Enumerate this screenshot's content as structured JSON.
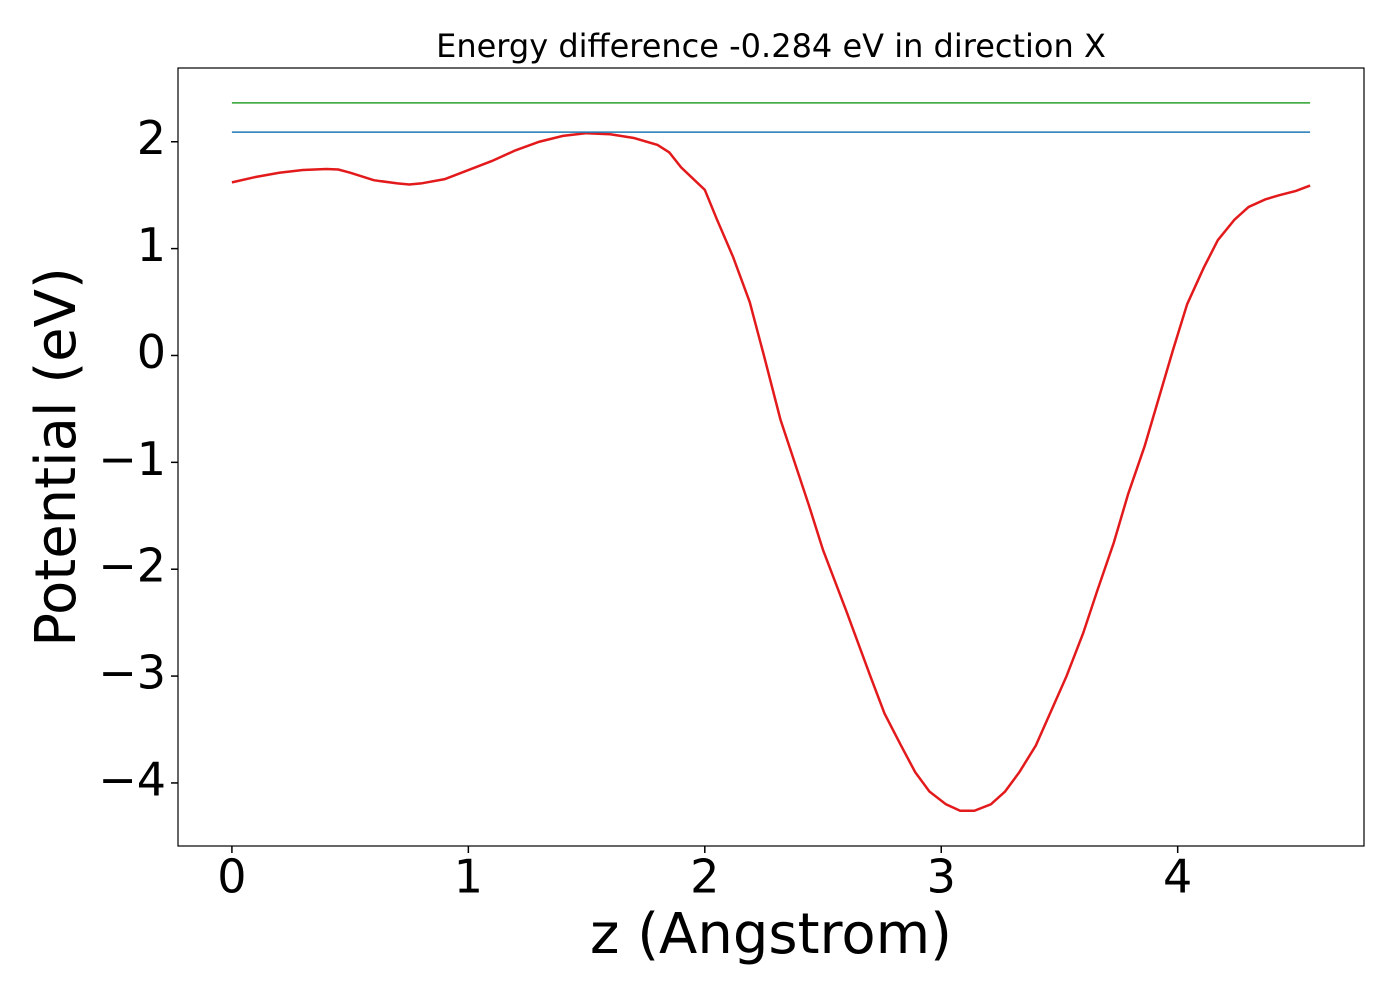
{
  "chart_data": {
    "type": "line",
    "title": "Energy difference -0.284 eV in direction X",
    "xlabel": "z (Angstrom)",
    "ylabel": "Potential (eV)",
    "xlim": [
      -0.228,
      4.788
    ],
    "ylim": [
      -4.59,
      2.69
    ],
    "xticks": [
      0,
      1,
      2,
      3,
      4
    ],
    "yticks": [
      {
        "value": -4,
        "label": "−4"
      },
      {
        "value": -3,
        "label": "−3"
      },
      {
        "value": -2,
        "label": "−2"
      },
      {
        "value": -1,
        "label": "−1"
      },
      0,
      1,
      2
    ],
    "series": [
      {
        "color": "#e31a1c",
        "x": [
          0,
          0.1,
          0.2,
          0.3,
          0.4,
          0.45,
          0.5,
          0.6,
          0.7,
          0.75,
          0.8,
          0.9,
          1.0,
          1.1,
          1.2,
          1.3,
          1.4,
          1.5,
          1.6,
          1.7,
          1.8,
          1.85,
          1.9,
          2.0,
          2.05,
          2.12,
          2.19,
          2.25,
          2.32,
          2.38,
          2.44,
          2.5,
          2.6,
          2.7,
          2.76,
          2.83,
          2.89,
          2.95,
          3.02,
          3.08,
          3.14,
          3.21,
          3.27,
          3.33,
          3.4,
          3.46,
          3.53,
          3.6,
          3.66,
          3.73,
          3.79,
          3.86,
          3.92,
          3.98,
          4.04,
          4.11,
          4.17,
          4.24,
          4.3,
          4.37,
          4.43,
          4.5,
          4.56
        ],
        "values": [
          1.62,
          1.67,
          1.71,
          1.735,
          1.745,
          1.74,
          1.71,
          1.64,
          1.61,
          1.6,
          1.61,
          1.65,
          1.735,
          1.82,
          1.92,
          2.0,
          2.055,
          2.08,
          2.07,
          2.035,
          1.97,
          1.9,
          1.76,
          1.55,
          1.28,
          0.92,
          0.5,
          0.0,
          -0.6,
          -1.0,
          -1.4,
          -1.82,
          -2.4,
          -3.0,
          -3.35,
          -3.65,
          -3.9,
          -4.08,
          -4.2,
          -4.26,
          -4.26,
          -4.2,
          -4.08,
          -3.9,
          -3.65,
          -3.35,
          -3.0,
          -2.6,
          -2.2,
          -1.75,
          -1.3,
          -0.85,
          -0.4,
          0.05,
          0.48,
          0.82,
          1.08,
          1.27,
          1.39,
          1.46,
          1.5,
          1.54,
          1.59
        ]
      },
      {
        "color": "#1f77b4",
        "x": [
          0,
          4.56
        ],
        "values": [
          2.09,
          2.09
        ]
      },
      {
        "color": "#2ca02c",
        "x": [
          0,
          4.56
        ],
        "values": [
          2.364,
          2.364
        ]
      }
    ]
  }
}
